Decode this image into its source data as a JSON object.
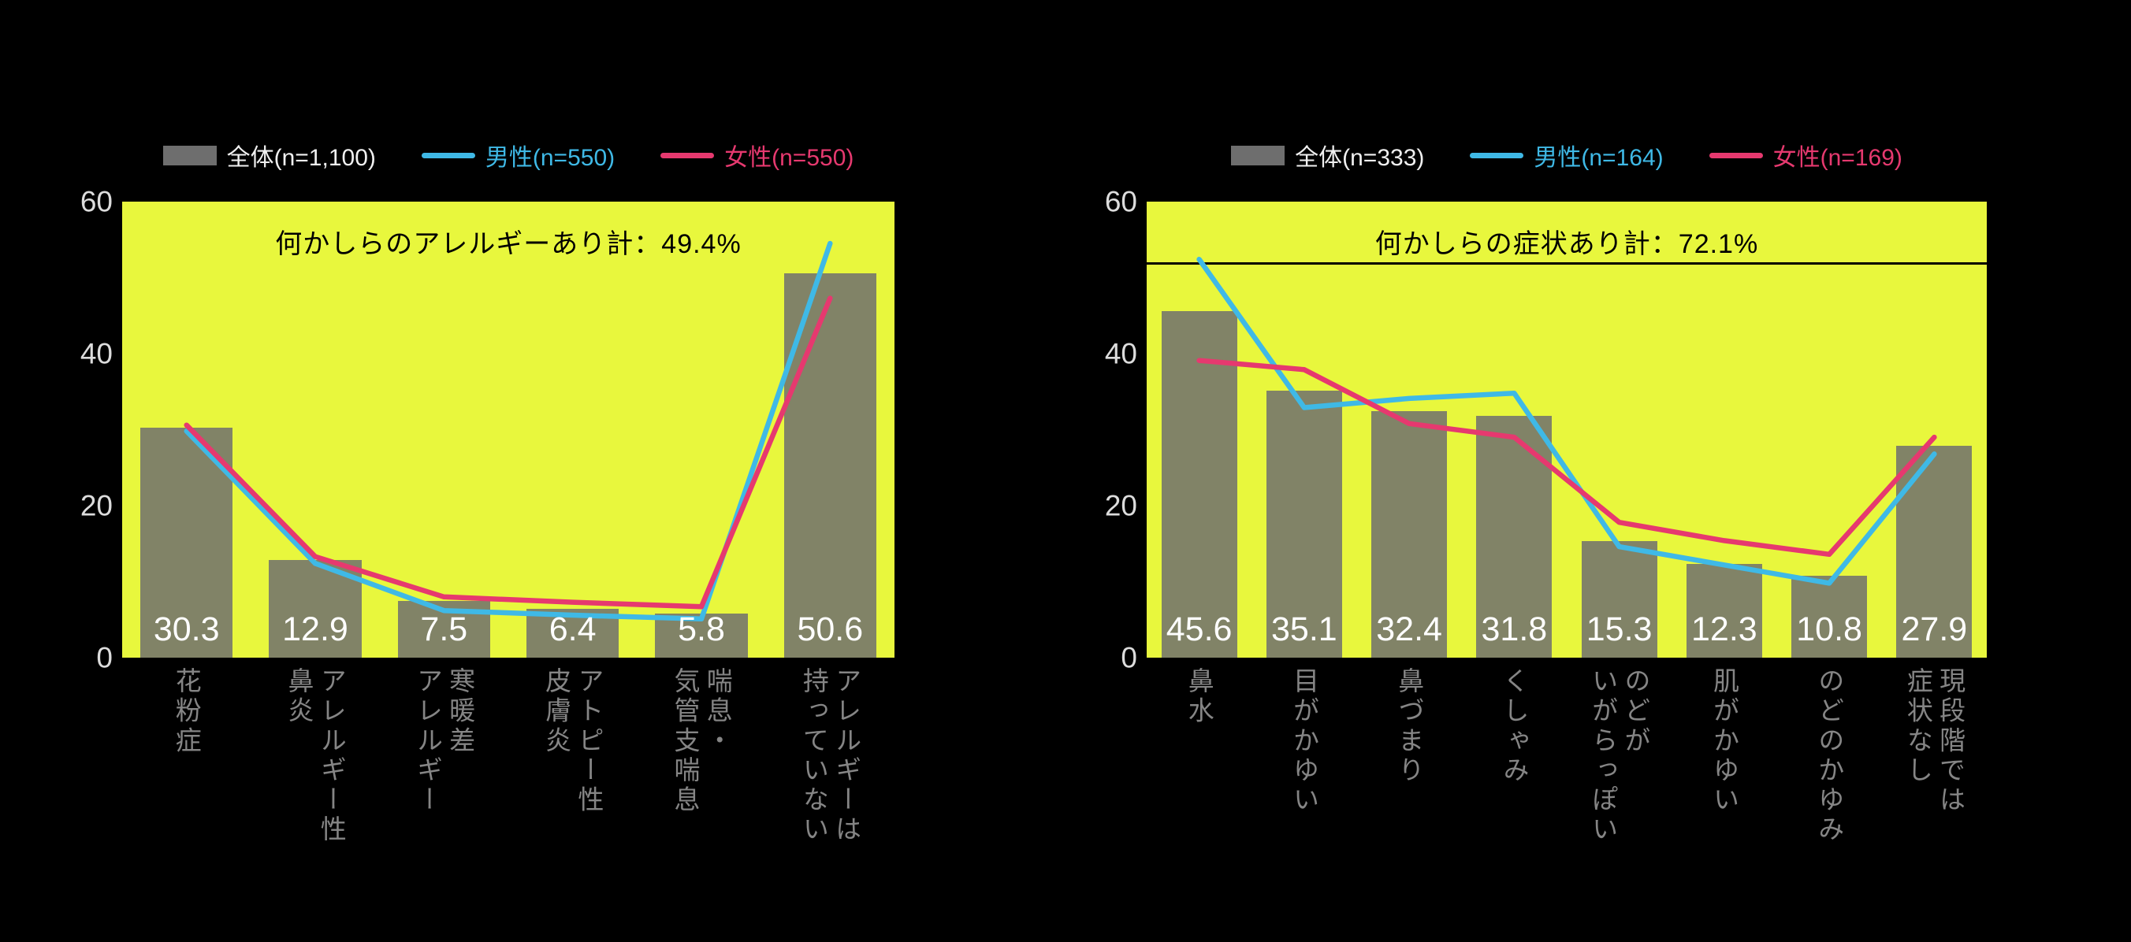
{
  "page": {
    "background": "#000000"
  },
  "chart_data": [
    {
      "type": "bar+line",
      "legend_position": "top",
      "plot_bg": "#e8f73d",
      "ylim": [
        0,
        60
      ],
      "yticks": [
        60,
        40,
        20,
        0
      ],
      "tick_color": "#dcdcdc",
      "category_color": "#858585",
      "data_label_color": "#ffffff",
      "annotation": {
        "text": "何かしらのアレルギーあり計：49.4%",
        "color": "#000000",
        "underline_at_value": null
      },
      "categories": [
        "花粉症",
        "アレルギー性鼻炎",
        "寒暖差アレルギー",
        "アトピー性皮膚炎",
        "喘息・気管支喘息",
        "アレルギーは持っていない"
      ],
      "category_lines": [
        [
          "花粉症"
        ],
        [
          "アレルギー性",
          "鼻炎"
        ],
        [
          "寒暖差",
          "アレルギー"
        ],
        [
          "アトピー性",
          "皮膚炎"
        ],
        [
          "喘息・",
          "気管支喘息"
        ],
        [
          "アレルギーは",
          "持っていない"
        ]
      ],
      "series": [
        {
          "name": "全体(n=1,100)",
          "type": "bar",
          "color": "#6e6e6e",
          "opacity": 0.85,
          "label_color": "#f0f0f0",
          "values": [
            30.3,
            12.9,
            7.5,
            6.4,
            5.8,
            50.6
          ]
        },
        {
          "name": "男性(n=550)",
          "type": "line",
          "color": "#3fb9e6",
          "opacity": 1,
          "label_color": "#3fb9e6",
          "values": [
            29.8,
            12.4,
            6.2,
            5.6,
            5.1,
            54.5
          ]
        },
        {
          "name": "女性(n=550)",
          "type": "line",
          "color": "#e6396f",
          "opacity": 1,
          "label_color": "#e6396f",
          "values": [
            30.6,
            13.3,
            8.0,
            7.3,
            6.7,
            47.3
          ]
        }
      ]
    },
    {
      "type": "bar+line",
      "legend_position": "top",
      "plot_bg": "#e8f73d",
      "ylim": [
        0,
        60
      ],
      "yticks": [
        60,
        40,
        20,
        0
      ],
      "tick_color": "#dcdcdc",
      "category_color": "#858585",
      "data_label_color": "#ffffff",
      "annotation": {
        "text": "何かしらの症状あり計：72.1%",
        "color": "#000000",
        "underline_at_value": 52
      },
      "categories": [
        "鼻水",
        "目がかゆい",
        "鼻づまり",
        "くしゃみ",
        "のどがいがらっぽい",
        "肌がかゆい",
        "のどのかゆみ",
        "現段階では症状なし"
      ],
      "category_lines": [
        [
          "鼻水"
        ],
        [
          "目がかゆい"
        ],
        [
          "鼻づまり"
        ],
        [
          "くしゃみ"
        ],
        [
          "のどが",
          "いがらっぽい"
        ],
        [
          "肌がかゆい"
        ],
        [
          "のどのかゆみ"
        ],
        [
          "現段階では",
          "症状なし"
        ]
      ],
      "series": [
        {
          "name": "全体(n=333)",
          "type": "bar",
          "color": "#6e6e6e",
          "opacity": 0.85,
          "label_color": "#f0f0f0",
          "values": [
            45.6,
            35.1,
            32.4,
            31.8,
            15.3,
            12.3,
            10.8,
            27.9
          ]
        },
        {
          "name": "男性(n=164)",
          "type": "line",
          "color": "#3fb9e6",
          "opacity": 1,
          "label_color": "#3fb9e6",
          "values": [
            52.4,
            32.9,
            34.1,
            34.8,
            14.6,
            12.2,
            9.8,
            26.8
          ]
        },
        {
          "name": "女性(n=169)",
          "type": "line",
          "color": "#e6396f",
          "opacity": 1,
          "label_color": "#e6396f",
          "values": [
            39.1,
            37.9,
            30.8,
            29.0,
            17.8,
            15.4,
            13.6,
            29.0
          ]
        }
      ]
    }
  ]
}
